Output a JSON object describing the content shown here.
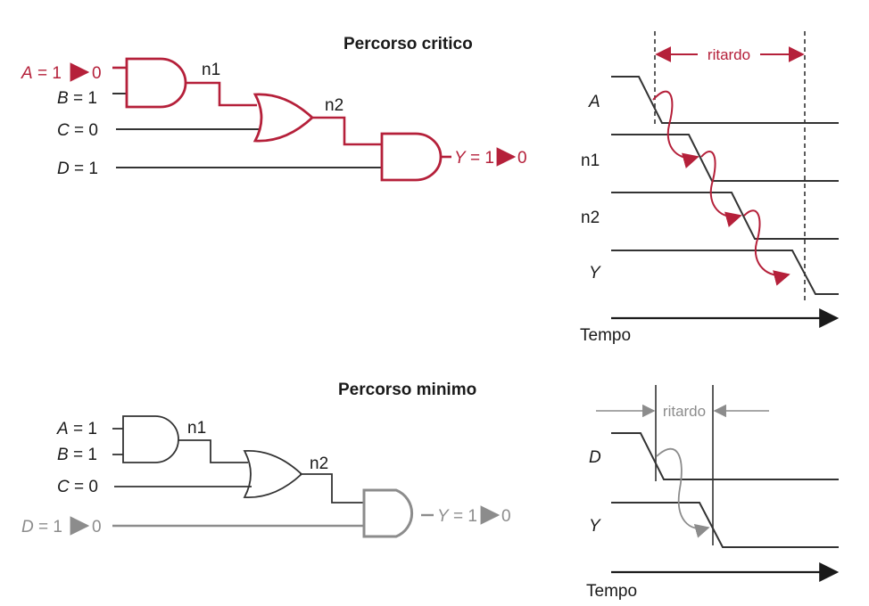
{
  "colors": {
    "critical": "#b5203a",
    "short": "#8c8c8c",
    "wire": "#333333"
  },
  "critical": {
    "title": "Percorso critico",
    "inputs": {
      "a_name": "A",
      "a_value": " = 1",
      "b_name": "B",
      "b_value": " = 1",
      "c_name": "C",
      "c_value": " = 0",
      "d_name": "D",
      "d_value": " = 1"
    },
    "a_transition_to": "0",
    "nodes": {
      "n1": "n1",
      "n2": "n2"
    },
    "output": {
      "name": "Y",
      "value": " = 1",
      "to": "0"
    },
    "timing": {
      "delay_label": "ritardo",
      "signals": [
        "A",
        "n1",
        "n2",
        "Y"
      ],
      "time_label": "Tempo"
    }
  },
  "short": {
    "title": "Percorso minimo",
    "inputs": {
      "a_name": "A",
      "a_value": " = 1",
      "b_name": "B",
      "b_value": " = 1",
      "c_name": "C",
      "c_value": " = 0",
      "d_name": "D",
      "d_value": " = 1"
    },
    "d_transition_to": "0",
    "nodes": {
      "n1": "n1",
      "n2": "n2"
    },
    "output": {
      "name": "Y",
      "value": " = 1",
      "to": "0"
    },
    "timing": {
      "delay_label": "ritardo",
      "signals": [
        "D",
        "Y"
      ],
      "time_label": "Tempo"
    }
  }
}
